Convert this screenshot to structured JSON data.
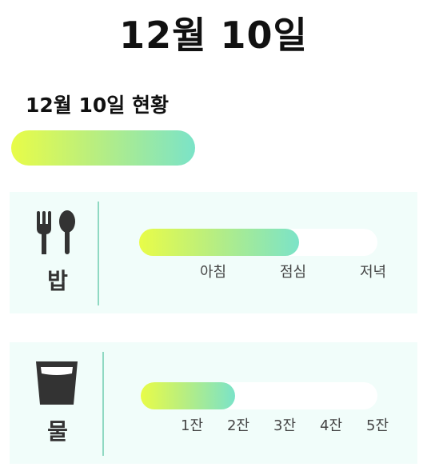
{
  "header": {
    "title": "12월 10일"
  },
  "summary": {
    "title": "12월 10일 현황"
  },
  "meal": {
    "label": "밥",
    "icon": "utensils-icon",
    "ticks": [
      "아침",
      "점심",
      "저녁"
    ],
    "progress": 0.67
  },
  "water": {
    "label": "물",
    "icon": "water-glass-icon",
    "ticks": [
      "1잔",
      "2잔",
      "3잔",
      "4잔",
      "5잔"
    ],
    "progress": 0.4
  },
  "colors": {
    "gradient_start": "#e8fc48",
    "gradient_end": "#7be3c8",
    "card_background": "#f1fdfa",
    "divider": "#8fd9c2",
    "icon": "#333333"
  }
}
